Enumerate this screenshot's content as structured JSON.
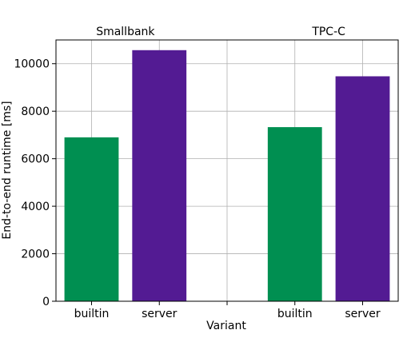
{
  "chart_data": {
    "type": "bar",
    "ylabel": "End-to-end runtime [ms]",
    "xlabel": "Variant",
    "ylim": [
      0,
      11000
    ],
    "yticks": [
      0,
      2000,
      4000,
      6000,
      8000,
      10000
    ],
    "grid": true,
    "groups": [
      {
        "name": "Smallbank",
        "bars": [
          {
            "category": "builtin",
            "value": 6900,
            "color": "#008f51"
          },
          {
            "category": "server",
            "value": 10570,
            "color": "#531b93"
          }
        ]
      },
      {
        "name": "TPC-C",
        "bars": [
          {
            "category": "builtin",
            "value": 7330,
            "color": "#008f51"
          },
          {
            "category": "server",
            "value": 9470,
            "color": "#531b93"
          }
        ]
      }
    ]
  }
}
